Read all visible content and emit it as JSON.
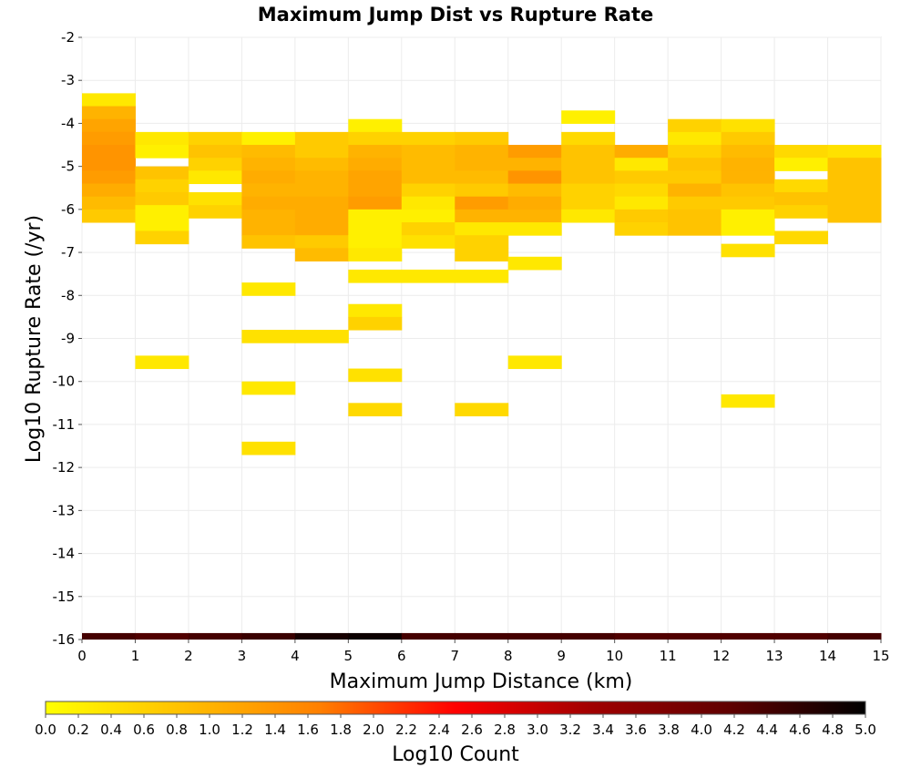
{
  "chart_data": {
    "type": "heatmap",
    "title": "Maximum Jump Dist vs Rupture Rate",
    "xlabel": "Maximum Jump Distance (km)",
    "ylabel": "Log10 Rupture Rate (/yr)",
    "xlim": [
      0,
      15
    ],
    "ylim": [
      -16,
      -2
    ],
    "x_ticks": [
      "0",
      "1",
      "2",
      "3",
      "4",
      "5",
      "6",
      "7",
      "8",
      "9",
      "10",
      "11",
      "12",
      "13",
      "14",
      "15"
    ],
    "y_ticks": [
      "-2",
      "-3",
      "-4",
      "-5",
      "-6",
      "-7",
      "-8",
      "-9",
      "-10",
      "-11",
      "-12",
      "-13",
      "-14",
      "-15",
      "-16"
    ],
    "grid": true,
    "x_bin_width": 1,
    "y_bin_height": 0.3,
    "colorbar": {
      "label": "Log10 Count",
      "range": [
        0,
        5
      ],
      "ticks": [
        "0.0",
        "0.2",
        "0.4",
        "0.6",
        "0.8",
        "1.0",
        "1.2",
        "1.4",
        "1.6",
        "1.8",
        "2.0",
        "2.2",
        "2.4",
        "2.6",
        "2.8",
        "3.0",
        "3.2",
        "3.4",
        "3.6",
        "3.8",
        "4.0",
        "4.2",
        "4.4",
        "4.6",
        "4.8",
        "5.0"
      ],
      "colors": [
        "#ffff00",
        "#ffc000",
        "#ff8000",
        "#ff0000",
        "#a00000",
        "#600000",
        "#000000"
      ]
    },
    "summary_row": {
      "y": -16,
      "values": [
        4.4,
        4.3,
        4.4,
        4.5,
        4.8,
        4.9,
        4.4,
        4.4,
        4.4,
        4.4,
        4.3,
        4.3,
        4.3,
        4.3,
        4.4
      ]
    },
    "cells": [
      {
        "x": 0,
        "y": -3.3,
        "v": 0.3
      },
      {
        "x": 0,
        "y": -3.6,
        "v": 1.0
      },
      {
        "x": 0,
        "y": -3.9,
        "v": 1.2
      },
      {
        "x": 0,
        "y": -4.2,
        "v": 1.3
      },
      {
        "x": 0,
        "y": -4.5,
        "v": 1.4
      },
      {
        "x": 0,
        "y": -4.8,
        "v": 1.4
      },
      {
        "x": 0,
        "y": -5.1,
        "v": 1.3
      },
      {
        "x": 0,
        "y": -5.4,
        "v": 1.1
      },
      {
        "x": 0,
        "y": -5.7,
        "v": 0.9
      },
      {
        "x": 0,
        "y": -6.0,
        "v": 0.7
      },
      {
        "x": 1,
        "y": -4.2,
        "v": 0.3
      },
      {
        "x": 1,
        "y": -4.5,
        "v": 0.2
      },
      {
        "x": 1,
        "y": -5.0,
        "v": 0.8
      },
      {
        "x": 1,
        "y": -5.3,
        "v": 0.6
      },
      {
        "x": 1,
        "y": -5.6,
        "v": 0.7
      },
      {
        "x": 1,
        "y": -5.9,
        "v": 0.2
      },
      {
        "x": 1,
        "y": -6.2,
        "v": 0.2
      },
      {
        "x": 1,
        "y": -6.5,
        "v": 0.6
      },
      {
        "x": 1,
        "y": -9.4,
        "v": 0.3
      },
      {
        "x": 2,
        "y": -4.2,
        "v": 0.6
      },
      {
        "x": 2,
        "y": -4.5,
        "v": 0.8
      },
      {
        "x": 2,
        "y": -4.8,
        "v": 0.6
      },
      {
        "x": 2,
        "y": -5.1,
        "v": 0.3
      },
      {
        "x": 2,
        "y": -5.6,
        "v": 0.4
      },
      {
        "x": 2,
        "y": -5.9,
        "v": 0.6
      },
      {
        "x": 3,
        "y": -4.2,
        "v": 0.2
      },
      {
        "x": 3,
        "y": -4.5,
        "v": 0.9
      },
      {
        "x": 3,
        "y": -4.8,
        "v": 1.0
      },
      {
        "x": 3,
        "y": -5.1,
        "v": 1.1
      },
      {
        "x": 3,
        "y": -5.4,
        "v": 1.0
      },
      {
        "x": 3,
        "y": -5.7,
        "v": 1.1
      },
      {
        "x": 3,
        "y": -6.0,
        "v": 1.0
      },
      {
        "x": 3,
        "y": -6.3,
        "v": 1.0
      },
      {
        "x": 3,
        "y": -6.6,
        "v": 0.8
      },
      {
        "x": 3,
        "y": -7.7,
        "v": 0.3
      },
      {
        "x": 3,
        "y": -8.8,
        "v": 0.4
      },
      {
        "x": 3,
        "y": -10.0,
        "v": 0.3
      },
      {
        "x": 3,
        "y": -11.4,
        "v": 0.4
      },
      {
        "x": 4,
        "y": -4.2,
        "v": 0.7
      },
      {
        "x": 4,
        "y": -4.5,
        "v": 0.7
      },
      {
        "x": 4,
        "y": -4.8,
        "v": 0.9
      },
      {
        "x": 4,
        "y": -5.1,
        "v": 1.0
      },
      {
        "x": 4,
        "y": -5.4,
        "v": 1.0
      },
      {
        "x": 4,
        "y": -5.7,
        "v": 1.1
      },
      {
        "x": 4,
        "y": -6.0,
        "v": 1.1
      },
      {
        "x": 4,
        "y": -6.3,
        "v": 1.1
      },
      {
        "x": 4,
        "y": -6.6,
        "v": 0.7
      },
      {
        "x": 4,
        "y": -6.9,
        "v": 0.9
      },
      {
        "x": 4,
        "y": -8.8,
        "v": 0.4
      },
      {
        "x": 5,
        "y": -3.9,
        "v": 0.2
      },
      {
        "x": 5,
        "y": -4.2,
        "v": 0.6
      },
      {
        "x": 5,
        "y": -4.5,
        "v": 1.0
      },
      {
        "x": 5,
        "y": -4.8,
        "v": 1.1
      },
      {
        "x": 5,
        "y": -5.1,
        "v": 1.2
      },
      {
        "x": 5,
        "y": -5.4,
        "v": 1.2
      },
      {
        "x": 5,
        "y": -5.7,
        "v": 1.3
      },
      {
        "x": 5,
        "y": -6.0,
        "v": 0.2
      },
      {
        "x": 5,
        "y": -6.3,
        "v": 0.2
      },
      {
        "x": 5,
        "y": -6.6,
        "v": 0.2
      },
      {
        "x": 5,
        "y": -6.9,
        "v": 0.3
      },
      {
        "x": 5,
        "y": -7.4,
        "v": 0.3
      },
      {
        "x": 5,
        "y": -8.2,
        "v": 0.3
      },
      {
        "x": 5,
        "y": -8.5,
        "v": 0.6
      },
      {
        "x": 5,
        "y": -9.7,
        "v": 0.4
      },
      {
        "x": 5,
        "y": -10.5,
        "v": 0.5
      },
      {
        "x": 6,
        "y": -4.2,
        "v": 0.6
      },
      {
        "x": 6,
        "y": -4.5,
        "v": 0.9
      },
      {
        "x": 6,
        "y": -4.8,
        "v": 0.9
      },
      {
        "x": 6,
        "y": -5.1,
        "v": 0.9
      },
      {
        "x": 6,
        "y": -5.4,
        "v": 0.6
      },
      {
        "x": 6,
        "y": -5.7,
        "v": 0.3
      },
      {
        "x": 6,
        "y": -6.0,
        "v": 0.2
      },
      {
        "x": 6,
        "y": -6.3,
        "v": 0.6
      },
      {
        "x": 6,
        "y": -6.6,
        "v": 0.4
      },
      {
        "x": 6,
        "y": -7.4,
        "v": 0.3
      },
      {
        "x": 7,
        "y": -4.2,
        "v": 0.7
      },
      {
        "x": 7,
        "y": -4.5,
        "v": 1.0
      },
      {
        "x": 7,
        "y": -4.8,
        "v": 1.0
      },
      {
        "x": 7,
        "y": -5.1,
        "v": 0.9
      },
      {
        "x": 7,
        "y": -5.4,
        "v": 0.7
      },
      {
        "x": 7,
        "y": -5.7,
        "v": 1.3
      },
      {
        "x": 7,
        "y": -6.0,
        "v": 1.0
      },
      {
        "x": 7,
        "y": -6.3,
        "v": 0.3
      },
      {
        "x": 7,
        "y": -6.6,
        "v": 0.6
      },
      {
        "x": 7,
        "y": -6.9,
        "v": 0.6
      },
      {
        "x": 7,
        "y": -7.4,
        "v": 0.3
      },
      {
        "x": 7,
        "y": -10.5,
        "v": 0.5
      },
      {
        "x": 8,
        "y": -4.5,
        "v": 1.3
      },
      {
        "x": 8,
        "y": -4.8,
        "v": 1.0
      },
      {
        "x": 8,
        "y": -5.1,
        "v": 1.4
      },
      {
        "x": 8,
        "y": -5.4,
        "v": 0.9
      },
      {
        "x": 8,
        "y": -5.7,
        "v": 1.1
      },
      {
        "x": 8,
        "y": -6.0,
        "v": 1.0
      },
      {
        "x": 8,
        "y": -6.3,
        "v": 0.3
      },
      {
        "x": 8,
        "y": -7.1,
        "v": 0.3
      },
      {
        "x": 8,
        "y": -9.4,
        "v": 0.3
      },
      {
        "x": 9,
        "y": -3.7,
        "v": 0.2
      },
      {
        "x": 9,
        "y": -4.2,
        "v": 0.5
      },
      {
        "x": 9,
        "y": -4.5,
        "v": 0.8
      },
      {
        "x": 9,
        "y": -4.8,
        "v": 0.8
      },
      {
        "x": 9,
        "y": -5.1,
        "v": 0.8
      },
      {
        "x": 9,
        "y": -5.4,
        "v": 0.6
      },
      {
        "x": 9,
        "y": -5.7,
        "v": 0.6
      },
      {
        "x": 9,
        "y": -6.0,
        "v": 0.3
      },
      {
        "x": 10,
        "y": -4.5,
        "v": 1.1
      },
      {
        "x": 10,
        "y": -4.8,
        "v": 0.3
      },
      {
        "x": 10,
        "y": -5.1,
        "v": 0.7
      },
      {
        "x": 10,
        "y": -5.4,
        "v": 0.5
      },
      {
        "x": 10,
        "y": -5.7,
        "v": 0.3
      },
      {
        "x": 10,
        "y": -6.0,
        "v": 0.7
      },
      {
        "x": 10,
        "y": -6.3,
        "v": 0.6
      },
      {
        "x": 11,
        "y": -3.9,
        "v": 0.6
      },
      {
        "x": 11,
        "y": -4.2,
        "v": 0.3
      },
      {
        "x": 11,
        "y": -4.5,
        "v": 0.6
      },
      {
        "x": 11,
        "y": -4.8,
        "v": 0.8
      },
      {
        "x": 11,
        "y": -5.1,
        "v": 0.7
      },
      {
        "x": 11,
        "y": -5.4,
        "v": 1.0
      },
      {
        "x": 11,
        "y": -5.7,
        "v": 0.7
      },
      {
        "x": 11,
        "y": -6.0,
        "v": 0.8
      },
      {
        "x": 11,
        "y": -6.3,
        "v": 0.8
      },
      {
        "x": 12,
        "y": -3.9,
        "v": 0.4
      },
      {
        "x": 12,
        "y": -4.2,
        "v": 0.7
      },
      {
        "x": 12,
        "y": -4.5,
        "v": 0.9
      },
      {
        "x": 12,
        "y": -4.8,
        "v": 1.0
      },
      {
        "x": 12,
        "y": -5.1,
        "v": 1.0
      },
      {
        "x": 12,
        "y": -5.4,
        "v": 0.8
      },
      {
        "x": 12,
        "y": -5.7,
        "v": 0.7
      },
      {
        "x": 12,
        "y": -6.0,
        "v": 0.2
      },
      {
        "x": 12,
        "y": -6.3,
        "v": 0.2
      },
      {
        "x": 12,
        "y": -6.8,
        "v": 0.4
      },
      {
        "x": 12,
        "y": -10.3,
        "v": 0.3
      },
      {
        "x": 13,
        "y": -4.5,
        "v": 0.5
      },
      {
        "x": 13,
        "y": -4.8,
        "v": 0.2
      },
      {
        "x": 13,
        "y": -5.3,
        "v": 0.5
      },
      {
        "x": 13,
        "y": -5.6,
        "v": 0.8
      },
      {
        "x": 13,
        "y": -5.9,
        "v": 0.6
      },
      {
        "x": 13,
        "y": -6.5,
        "v": 0.5
      },
      {
        "x": 14,
        "y": -4.5,
        "v": 0.4
      },
      {
        "x": 14,
        "y": -4.8,
        "v": 0.8
      },
      {
        "x": 14,
        "y": -5.1,
        "v": 0.8
      },
      {
        "x": 14,
        "y": -5.4,
        "v": 0.8
      },
      {
        "x": 14,
        "y": -5.7,
        "v": 0.8
      },
      {
        "x": 14,
        "y": -6.0,
        "v": 0.8
      }
    ]
  }
}
